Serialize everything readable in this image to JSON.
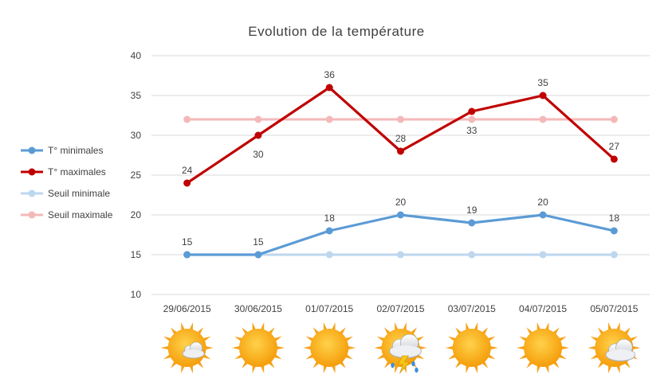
{
  "chart_data": {
    "type": "line",
    "title": "Evolution de la température",
    "categories": [
      "29/06/2015",
      "30/06/2015",
      "01/07/2015",
      "02/07/2015",
      "03/07/2015",
      "04/07/2015",
      "05/07/2015"
    ],
    "ylim": [
      10,
      40
    ],
    "yticks": [
      10,
      15,
      20,
      25,
      30,
      35,
      40
    ],
    "grid": true,
    "legend_position": "left",
    "series": [
      {
        "name": "T° minimales",
        "values": [
          15,
          15,
          18,
          20,
          19,
          20,
          18
        ],
        "color": "#5b9bd5",
        "labels": true
      },
      {
        "name": "T° maximales",
        "values": [
          24,
          30,
          36,
          28,
          33,
          35,
          27
        ],
        "color": "#c00000",
        "labels": true
      },
      {
        "name": "Seuil minimale",
        "values": [
          15,
          15,
          15,
          15,
          15,
          15,
          15
        ],
        "color": "#bdd7ee",
        "labels": false
      },
      {
        "name": "Seuil maximale",
        "values": [
          32,
          32,
          32,
          32,
          32,
          32,
          32
        ],
        "color": "#f4b8b8",
        "labels": false
      }
    ],
    "weather_icons": [
      "sun-cloud-icon",
      "sun-icon",
      "sun-icon",
      "sun-storm-icon",
      "sun-icon",
      "sun-icon",
      "sun-cloud-icon"
    ]
  }
}
